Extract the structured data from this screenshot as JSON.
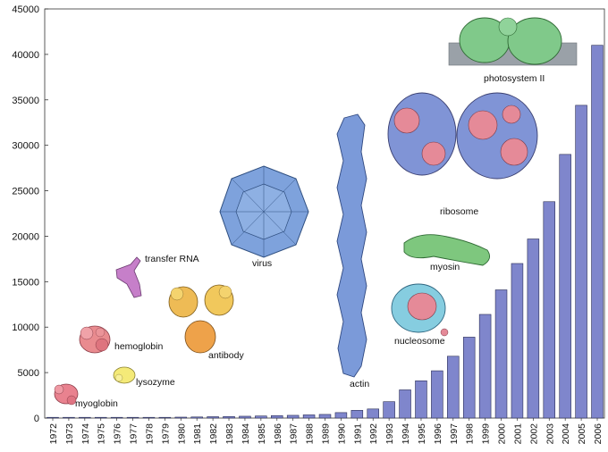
{
  "chart_data": {
    "type": "bar",
    "title": "",
    "xlabel": "",
    "ylabel": "",
    "ylim": [
      0,
      45000
    ],
    "yticks": [
      0,
      5000,
      10000,
      15000,
      20000,
      25000,
      30000,
      35000,
      40000,
      45000
    ],
    "grid": false,
    "legend": "none",
    "bar_color": "#7f86cc",
    "categories": [
      "1972",
      "1973",
      "1974",
      "1975",
      "1976",
      "1977",
      "1978",
      "1979",
      "1980",
      "1981",
      "1982",
      "1983",
      "1984",
      "1985",
      "1986",
      "1987",
      "1988",
      "1989",
      "1990",
      "1991",
      "1992",
      "1993",
      "1994",
      "1995",
      "1996",
      "1997",
      "1998",
      "1999",
      "2000",
      "2001",
      "2002",
      "2003",
      "2004",
      "2005",
      "2006"
    ],
    "values": [
      5,
      10,
      15,
      20,
      30,
      40,
      50,
      70,
      100,
      120,
      150,
      170,
      200,
      230,
      270,
      300,
      350,
      400,
      600,
      850,
      1000,
      1800,
      3100,
      4100,
      5200,
      6800,
      8900,
      11400,
      14100,
      17000,
      19700,
      23800,
      29000,
      34400,
      41000
    ],
    "annotations": [
      {
        "id": "myoglobin",
        "text": "myoglobin",
        "color": "#e9828f"
      },
      {
        "id": "lysozyme",
        "text": "lysozyme",
        "color": "#f4ea78"
      },
      {
        "id": "hemoglobin",
        "text": "hemoglobin",
        "color": "#e98b8f"
      },
      {
        "id": "transfer-rna",
        "text": "transfer RNA",
        "color": "#c67fc9"
      },
      {
        "id": "antibody",
        "text": "antibody",
        "color": "#eea24a"
      },
      {
        "id": "virus",
        "text": "virus",
        "color": "#7ea2dc"
      },
      {
        "id": "actin",
        "text": "actin",
        "color": "#7b9ad9"
      },
      {
        "id": "ribosome",
        "text": "ribosome",
        "color": "#e58a98"
      },
      {
        "id": "myosin",
        "text": "myosin",
        "color": "#7ec77e"
      },
      {
        "id": "nucleosome",
        "text": "nucleosome",
        "color": "#86cde0"
      },
      {
        "id": "photosystem-ii",
        "text": "photosystem II",
        "color": "#80c98a"
      }
    ]
  }
}
